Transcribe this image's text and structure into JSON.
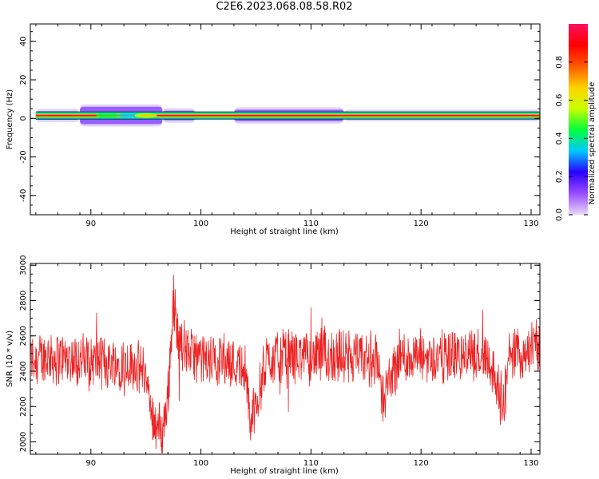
{
  "title": "C2E6.2023.068.08.58.R02",
  "chart_data": [
    {
      "type": "heatmap",
      "xlabel": "Height of straight line (km)",
      "ylabel": "Frequency (Hz)",
      "xlim": [
        84.5,
        130.8
      ],
      "ylim": [
        -50,
        49
      ],
      "xticks": [
        90,
        100,
        110,
        120,
        130
      ],
      "yticks": [
        40,
        20,
        0,
        -20,
        -40
      ],
      "band": {
        "center_hz": 1.5,
        "core_halfwidth_hz": 1.2,
        "segments": [
          {
            "x0": 85.0,
            "x1": 89.0,
            "halfwidth_hz": 2.2,
            "level": 0.45
          },
          {
            "x0": 89.0,
            "x1": 96.5,
            "halfwidth_hz": 4.5,
            "level": 0.35
          },
          {
            "x0": 96.5,
            "x1": 99.5,
            "halfwidth_hz": 2.5,
            "level": 0.6
          },
          {
            "x0": 103.0,
            "x1": 113.0,
            "halfwidth_hz": 3.0,
            "level": 0.25
          },
          {
            "x0": 113.0,
            "x1": 130.8,
            "halfwidth_hz": 1.8,
            "level": 0.8
          }
        ]
      },
      "colorbar": {
        "label": "Normalized spectral amplitude",
        "range": [
          0.0,
          1.0
        ],
        "ticks": [
          "0.0",
          "0.2",
          "0.4",
          "0.6",
          "0.8"
        ],
        "colors": [
          "#e8d8f8",
          "#9a4dff",
          "#2a00ff",
          "#00c8ff",
          "#00ff3c",
          "#c8ff00",
          "#ffd200",
          "#ff5a00",
          "#ff0000",
          "#ff1060"
        ]
      }
    },
    {
      "type": "line",
      "xlabel": "Height of straight line (km)",
      "ylabel": "SNR (10 * v/v)",
      "xlim": [
        84.5,
        130.8
      ],
      "ylim": [
        1930,
        3010
      ],
      "xticks": [
        90,
        100,
        110,
        120,
        130
      ],
      "yticks": [
        2000,
        2200,
        2400,
        2600,
        2800,
        3000
      ],
      "color": "#ee2222",
      "series": [
        {
          "x": [
            84.5,
            86,
            88,
            90,
            92,
            94,
            95,
            95.5,
            96.5,
            97,
            97.5,
            98,
            100,
            102,
            104,
            104.5,
            106,
            108,
            110,
            112,
            114,
            116,
            116.5,
            118,
            120,
            122,
            124,
            126,
            127.5,
            128,
            130,
            130.8
          ],
          "y": [
            2470,
            2480,
            2470,
            2460,
            2450,
            2440,
            2380,
            2150,
            2050,
            2250,
            2800,
            2560,
            2460,
            2470,
            2420,
            2100,
            2470,
            2490,
            2480,
            2490,
            2470,
            2470,
            2240,
            2480,
            2480,
            2480,
            2490,
            2500,
            2200,
            2480,
            2530,
            2520
          ]
        }
      ]
    }
  ]
}
